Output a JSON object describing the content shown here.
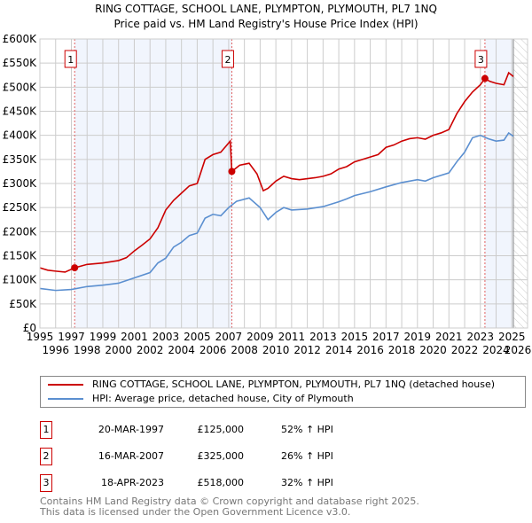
{
  "chart_data": {
    "type": "line",
    "title": "RING COTTAGE, SCHOOL LANE, PLYMPTON, PLYMOUTH, PL7 1NQ",
    "subtitle": "Price paid vs. HM Land Registry's House Price Index (HPI)",
    "xlim": [
      1995,
      2026
    ],
    "ylim": [
      0,
      600000
    ],
    "x_ticks": [
      "1995",
      "1996",
      "1997",
      "1998",
      "1999",
      "2000",
      "2001",
      "2002",
      "2003",
      "2004",
      "2005",
      "2006",
      "2007",
      "2008",
      "2009",
      "2010",
      "2011",
      "2012",
      "2013",
      "2014",
      "2015",
      "2016",
      "2017",
      "2018",
      "2019",
      "2020",
      "2021",
      "2022",
      "2023",
      "2024",
      "2025",
      "2026"
    ],
    "y_ticks": [
      "£0",
      "£50K",
      "£100K",
      "£150K",
      "£200K",
      "£250K",
      "£300K",
      "£350K",
      "£400K",
      "£450K",
      "£500K",
      "£550K",
      "£600K"
    ],
    "grid": true,
    "shaded_periods": [
      [
        1997.21,
        2007.2
      ],
      [
        2023.29,
        2025.1
      ]
    ],
    "forecast_hatch_from": 2025.1,
    "series": [
      {
        "name": "RING COTTAGE, SCHOOL LANE, PLYMPTON, PLYMOUTH, PL7 1NQ (detached house)",
        "color": "#cc0000",
        "x": [
          1995,
          1995.5,
          1996,
          1996.6,
          1997.21,
          1998,
          1999,
          2000,
          2000.5,
          2001,
          2001.5,
          2002,
          2002.5,
          2003,
          2003.5,
          2004,
          2004.5,
          2005,
          2005.5,
          2006,
          2006.5,
          2007.1,
          2007.2,
          2007.7,
          2008.3,
          2008.8,
          2009.2,
          2009.5,
          2010,
          2010.5,
          2011,
          2011.5,
          2012,
          2012.5,
          2013,
          2013.5,
          2014,
          2014.5,
          2015,
          2015.5,
          2016,
          2016.5,
          2017,
          2017.5,
          2018,
          2018.5,
          2019,
          2019.5,
          2020,
          2020.5,
          2021,
          2021.5,
          2022,
          2022.5,
          2023,
          2023.29,
          2023.6,
          2024,
          2024.5,
          2024.8,
          2025.1
        ],
        "y": [
          125000,
          120000,
          118000,
          116000,
          125000,
          132000,
          135000,
          140000,
          146000,
          160000,
          172000,
          185000,
          208000,
          245000,
          265000,
          280000,
          295000,
          300000,
          350000,
          360000,
          365000,
          388000,
          325000,
          338000,
          342000,
          320000,
          285000,
          290000,
          305000,
          315000,
          310000,
          308000,
          310000,
          312000,
          315000,
          320000,
          330000,
          335000,
          345000,
          350000,
          355000,
          360000,
          375000,
          380000,
          388000,
          393000,
          395000,
          392000,
          400000,
          405000,
          412000,
          445000,
          470000,
          490000,
          505000,
          518000,
          512000,
          508000,
          505000,
          530000,
          522000
        ]
      },
      {
        "name": "HPI: Average price, detached house, City of Plymouth",
        "color": "#5b8fd0",
        "x": [
          1995,
          1996,
          1997,
          1998,
          1999,
          2000,
          2001,
          2002,
          2002.5,
          2003,
          2003.5,
          2004,
          2004.5,
          2005,
          2005.5,
          2006,
          2006.5,
          2007,
          2007.5,
          2008.3,
          2009,
          2009.5,
          2010,
          2010.5,
          2011,
          2012,
          2013,
          2014,
          2014.5,
          2015,
          2016,
          2017,
          2018,
          2019,
          2019.5,
          2020,
          2021,
          2021.5,
          2022,
          2022.5,
          2023,
          2023.5,
          2024,
          2024.5,
          2024.8,
          2025.1
        ],
        "y": [
          82000,
          78000,
          80000,
          86000,
          89000,
          93000,
          104000,
          115000,
          135000,
          145000,
          168000,
          178000,
          192000,
          197000,
          228000,
          236000,
          233000,
          250000,
          263000,
          270000,
          250000,
          225000,
          240000,
          250000,
          245000,
          247000,
          252000,
          262000,
          268000,
          275000,
          283000,
          293000,
          302000,
          308000,
          305000,
          312000,
          322000,
          345000,
          365000,
          395000,
          400000,
          393000,
          388000,
          390000,
          405000,
          398000
        ]
      }
    ],
    "sales": [
      {
        "label": "1",
        "x": 1997.21,
        "y": 125000
      },
      {
        "label": "2",
        "x": 2007.2,
        "y": 325000
      },
      {
        "label": "3",
        "x": 2023.29,
        "y": 518000
      }
    ]
  },
  "table": [
    {
      "num": "1",
      "date": "20-MAR-1997",
      "price": "£125,000",
      "hpi": "52% ↑ HPI"
    },
    {
      "num": "2",
      "date": "16-MAR-2007",
      "price": "£325,000",
      "hpi": "26% ↑ HPI"
    },
    {
      "num": "3",
      "date": "18-APR-2023",
      "price": "£518,000",
      "hpi": "32% ↑ HPI"
    }
  ],
  "footer": [
    "Contains HM Land Registry data © Crown copyright and database right 2025.",
    "This data is licensed under the Open Government Licence v3.0."
  ]
}
